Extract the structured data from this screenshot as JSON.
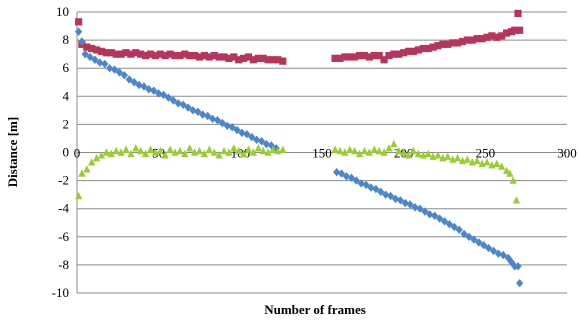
{
  "chart_data": {
    "type": "scatter",
    "xlabel": "Number of frames",
    "ylabel": "Distance [m]",
    "xlim": [
      0,
      300
    ],
    "ylim": [
      -10,
      10
    ],
    "x_ticks": [
      "0",
      "50",
      "100",
      "150",
      "200",
      "250",
      "300"
    ],
    "y_ticks": [
      "-10",
      "-8",
      "-6",
      "-4",
      "-2",
      "0",
      "2",
      "4",
      "6",
      "8",
      "10"
    ],
    "grid": "horizontal",
    "legend": "none",
    "series": [
      {
        "marker": "square",
        "color": "#b5365a",
        "points": [
          [
            1,
            9.3
          ],
          [
            3,
            7.7
          ],
          [
            6,
            7.5
          ],
          [
            9,
            7.4
          ],
          [
            12,
            7.3
          ],
          [
            15,
            7.2
          ],
          [
            18,
            7.1
          ],
          [
            21,
            7.1
          ],
          [
            24,
            7.0
          ],
          [
            27,
            7.0
          ],
          [
            30,
            7.1
          ],
          [
            33,
            7.0
          ],
          [
            36,
            7.1
          ],
          [
            39,
            7.0
          ],
          [
            42,
            6.9
          ],
          [
            45,
            7.0
          ],
          [
            48,
            6.9
          ],
          [
            51,
            7.0
          ],
          [
            54,
            6.9
          ],
          [
            57,
            7.0
          ],
          [
            60,
            6.9
          ],
          [
            63,
            6.9
          ],
          [
            66,
            7.0
          ],
          [
            69,
            6.9
          ],
          [
            72,
            6.9
          ],
          [
            75,
            6.8
          ],
          [
            78,
            6.9
          ],
          [
            81,
            6.8
          ],
          [
            84,
            6.9
          ],
          [
            87,
            6.8
          ],
          [
            90,
            6.8
          ],
          [
            93,
            6.7
          ],
          [
            96,
            6.8
          ],
          [
            99,
            6.6
          ],
          [
            102,
            6.7
          ],
          [
            105,
            6.8
          ],
          [
            108,
            6.6
          ],
          [
            111,
            6.7
          ],
          [
            114,
            6.7
          ],
          [
            117,
            6.6
          ],
          [
            120,
            6.6
          ],
          [
            123,
            6.6
          ],
          [
            126,
            6.5
          ],
          [
            158,
            6.7
          ],
          [
            161,
            6.7
          ],
          [
            164,
            6.8
          ],
          [
            167,
            6.8
          ],
          [
            170,
            6.8
          ],
          [
            173,
            6.9
          ],
          [
            176,
            6.9
          ],
          [
            179,
            6.8
          ],
          [
            182,
            6.9
          ],
          [
            185,
            6.9
          ],
          [
            188,
            6.6
          ],
          [
            191,
            6.9
          ],
          [
            194,
            7.0
          ],
          [
            197,
            7.0
          ],
          [
            200,
            7.1
          ],
          [
            203,
            7.2
          ],
          [
            206,
            7.2
          ],
          [
            209,
            7.3
          ],
          [
            212,
            7.4
          ],
          [
            215,
            7.4
          ],
          [
            218,
            7.5
          ],
          [
            221,
            7.6
          ],
          [
            224,
            7.7
          ],
          [
            227,
            7.7
          ],
          [
            230,
            7.8
          ],
          [
            233,
            7.8
          ],
          [
            236,
            7.9
          ],
          [
            239,
            8.0
          ],
          [
            242,
            8.0
          ],
          [
            245,
            8.1
          ],
          [
            248,
            8.1
          ],
          [
            251,
            8.2
          ],
          [
            254,
            8.3
          ],
          [
            257,
            8.2
          ],
          [
            260,
            8.3
          ],
          [
            263,
            8.5
          ],
          [
            266,
            8.6
          ],
          [
            268,
            8.7
          ],
          [
            270,
            9.9
          ],
          [
            271,
            8.7
          ]
        ]
      },
      {
        "marker": "diamond",
        "color": "#4a86c8",
        "points": [
          [
            1,
            8.6
          ],
          [
            3,
            7.9
          ],
          [
            5,
            7.0
          ],
          [
            8,
            6.8
          ],
          [
            11,
            6.6
          ],
          [
            14,
            6.4
          ],
          [
            17,
            6.3
          ],
          [
            20,
            6.0
          ],
          [
            23,
            5.9
          ],
          [
            26,
            5.7
          ],
          [
            29,
            5.5
          ],
          [
            32,
            5.2
          ],
          [
            35,
            5.0
          ],
          [
            38,
            4.8
          ],
          [
            41,
            4.7
          ],
          [
            44,
            4.5
          ],
          [
            47,
            4.4
          ],
          [
            50,
            4.2
          ],
          [
            53,
            4.1
          ],
          [
            56,
            3.9
          ],
          [
            59,
            3.7
          ],
          [
            62,
            3.5
          ],
          [
            65,
            3.4
          ],
          [
            68,
            3.2
          ],
          [
            71,
            3.0
          ],
          [
            74,
            2.9
          ],
          [
            77,
            2.7
          ],
          [
            80,
            2.6
          ],
          [
            83,
            2.4
          ],
          [
            86,
            2.3
          ],
          [
            89,
            2.1
          ],
          [
            92,
            1.9
          ],
          [
            95,
            1.8
          ],
          [
            98,
            1.6
          ],
          [
            101,
            1.4
          ],
          [
            104,
            1.3
          ],
          [
            107,
            1.1
          ],
          [
            110,
            0.9
          ],
          [
            113,
            0.8
          ],
          [
            116,
            0.6
          ],
          [
            119,
            0.5
          ],
          [
            122,
            0.3
          ],
          [
            159,
            -1.4
          ],
          [
            162,
            -1.5
          ],
          [
            165,
            -1.7
          ],
          [
            168,
            -1.8
          ],
          [
            171,
            -2.0
          ],
          [
            174,
            -2.2
          ],
          [
            177,
            -2.3
          ],
          [
            180,
            -2.5
          ],
          [
            183,
            -2.6
          ],
          [
            186,
            -2.8
          ],
          [
            189,
            -3.0
          ],
          [
            192,
            -3.1
          ],
          [
            195,
            -3.3
          ],
          [
            198,
            -3.4
          ],
          [
            201,
            -3.6
          ],
          [
            204,
            -3.7
          ],
          [
            207,
            -3.9
          ],
          [
            210,
            -4.0
          ],
          [
            213,
            -4.2
          ],
          [
            216,
            -4.4
          ],
          [
            219,
            -4.5
          ],
          [
            222,
            -4.7
          ],
          [
            225,
            -4.9
          ],
          [
            228,
            -5.1
          ],
          [
            231,
            -5.3
          ],
          [
            234,
            -5.5
          ],
          [
            237,
            -5.8
          ],
          [
            240,
            -6.0
          ],
          [
            243,
            -6.2
          ],
          [
            246,
            -6.4
          ],
          [
            249,
            -6.6
          ],
          [
            252,
            -6.8
          ],
          [
            255,
            -7.0
          ],
          [
            258,
            -7.2
          ],
          [
            261,
            -7.3
          ],
          [
            264,
            -7.5
          ],
          [
            266,
            -7.8
          ],
          [
            268,
            -8.1
          ],
          [
            270,
            -8.1
          ],
          [
            271,
            -9.3
          ]
        ]
      },
      {
        "marker": "triangle",
        "color": "#9acd32",
        "points": [
          [
            1,
            -3.1
          ],
          [
            3,
            -1.5
          ],
          [
            6,
            -1.2
          ],
          [
            9,
            -0.7
          ],
          [
            12,
            -0.4
          ],
          [
            15,
            -0.2
          ],
          [
            18,
            0.0
          ],
          [
            21,
            -0.1
          ],
          [
            24,
            0.1
          ],
          [
            27,
            0.0
          ],
          [
            30,
            0.2
          ],
          [
            33,
            -0.1
          ],
          [
            36,
            0.3
          ],
          [
            39,
            0.1
          ],
          [
            42,
            -0.1
          ],
          [
            45,
            0.2
          ],
          [
            48,
            0.0
          ],
          [
            51,
            0.1
          ],
          [
            54,
            -0.2
          ],
          [
            57,
            0.2
          ],
          [
            60,
            0.0
          ],
          [
            63,
            0.1
          ],
          [
            66,
            -0.1
          ],
          [
            69,
            0.3
          ],
          [
            72,
            0.0
          ],
          [
            75,
            0.1
          ],
          [
            78,
            -0.1
          ],
          [
            81,
            0.2
          ],
          [
            84,
            0.0
          ],
          [
            87,
            -0.2
          ],
          [
            90,
            0.1
          ],
          [
            93,
            0.0
          ],
          [
            96,
            0.3
          ],
          [
            99,
            0.1
          ],
          [
            102,
            -0.1
          ],
          [
            105,
            0.2
          ],
          [
            108,
            0.0
          ],
          [
            111,
            0.3
          ],
          [
            114,
            0.1
          ],
          [
            117,
            0.0
          ],
          [
            120,
            0.2
          ],
          [
            123,
            0.1
          ],
          [
            126,
            0.2
          ],
          [
            158,
            0.2
          ],
          [
            161,
            0.1
          ],
          [
            164,
            0.0
          ],
          [
            167,
            0.2
          ],
          [
            170,
            0.1
          ],
          [
            173,
            -0.1
          ],
          [
            176,
            0.1
          ],
          [
            179,
            0.0
          ],
          [
            182,
            0.2
          ],
          [
            185,
            0.1
          ],
          [
            188,
            0.0
          ],
          [
            191,
            0.3
          ],
          [
            194,
            0.6
          ],
          [
            197,
            0.1
          ],
          [
            200,
            0.0
          ],
          [
            203,
            -0.2
          ],
          [
            206,
            0.1
          ],
          [
            209,
            -0.1
          ],
          [
            212,
            -0.2
          ],
          [
            215,
            -0.1
          ],
          [
            218,
            -0.3
          ],
          [
            221,
            -0.2
          ],
          [
            224,
            -0.4
          ],
          [
            227,
            -0.3
          ],
          [
            230,
            -0.5
          ],
          [
            233,
            -0.4
          ],
          [
            236,
            -0.6
          ],
          [
            239,
            -0.5
          ],
          [
            242,
            -0.7
          ],
          [
            245,
            -0.6
          ],
          [
            248,
            -0.8
          ],
          [
            251,
            -0.7
          ],
          [
            254,
            -0.9
          ],
          [
            257,
            -0.8
          ],
          [
            260,
            -1.0
          ],
          [
            263,
            -1.3
          ],
          [
            265,
            -1.5
          ],
          [
            267,
            -2.0
          ],
          [
            269,
            -3.4
          ]
        ]
      }
    ]
  }
}
